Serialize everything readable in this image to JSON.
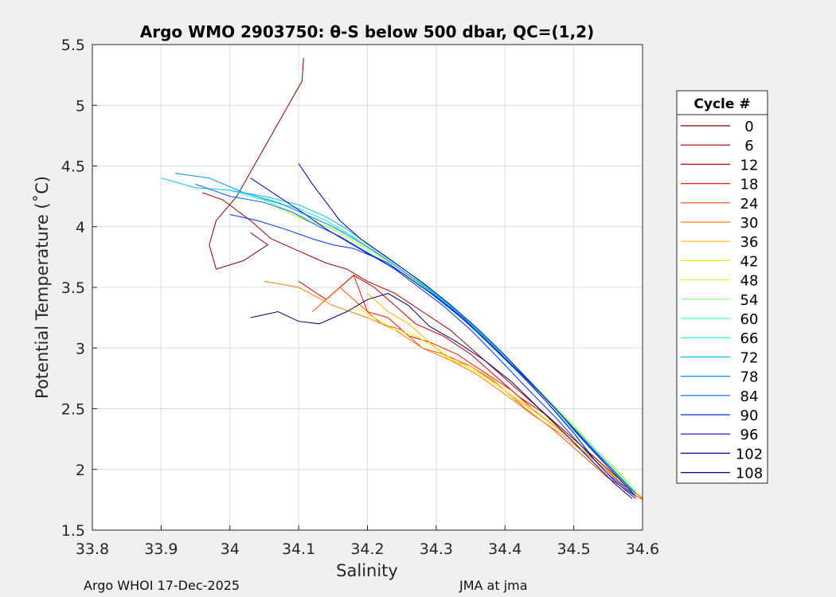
{
  "chart_data": {
    "type": "line",
    "title": "Argo WMO 2903750: θ-S below 500 dbar,  QC=(1,2)",
    "xlabel": "Salinity",
    "ylabel": "Potential Temperature (˚C)",
    "xlim": [
      33.8,
      34.6
    ],
    "ylim": [
      1.5,
      5.5
    ],
    "x_ticks": [
      "33.8",
      "33.9",
      "34",
      "34.1",
      "34.2",
      "34.3",
      "34.4",
      "34.5",
      "34.6"
    ],
    "y_ticks": [
      "1.5",
      "2",
      "2.5",
      "3",
      "3.5",
      "4",
      "4.5",
      "5",
      "5.5"
    ],
    "grid": true,
    "colormap": "jet",
    "legend": {
      "title": "Cycle #",
      "placement": "outside-right",
      "entries": [
        {
          "label": "0",
          "color": "#800000"
        },
        {
          "label": "6",
          "color": "#a30000"
        },
        {
          "label": "12",
          "color": "#c80000"
        },
        {
          "label": "18",
          "color": "#ec1a00"
        },
        {
          "label": "24",
          "color": "#ff4a00"
        },
        {
          "label": "30",
          "color": "#ff8000"
        },
        {
          "label": "36",
          "color": "#ffb000"
        },
        {
          "label": "42",
          "color": "#f2ea00"
        },
        {
          "label": "48",
          "color": "#b8ff3a"
        },
        {
          "label": "54",
          "color": "#7cff70"
        },
        {
          "label": "60",
          "color": "#3dffb0"
        },
        {
          "label": "66",
          "color": "#15e8d8"
        },
        {
          "label": "72",
          "color": "#00c0ff"
        },
        {
          "label": "78",
          "color": "#0090ff"
        },
        {
          "label": "84",
          "color": "#0060ff"
        },
        {
          "label": "90",
          "color": "#0030f0"
        },
        {
          "label": "96",
          "color": "#0008c8"
        },
        {
          "label": "102",
          "color": "#00009a"
        },
        {
          "label": "108",
          "color": "#00007a"
        }
      ]
    },
    "series": [
      {
        "name": "0",
        "x": [
          34.107,
          34.105,
          34.04,
          34.01,
          33.98,
          33.97,
          33.98,
          34.02,
          34.055,
          34.03
        ],
        "y": [
          5.39,
          5.2,
          4.55,
          4.25,
          4.05,
          3.85,
          3.65,
          3.72,
          3.85,
          3.95
        ]
      },
      {
        "name": "6",
        "x": [
          33.96,
          33.99,
          34.03,
          34.06,
          34.1,
          34.14,
          34.17,
          34.2,
          34.24,
          34.28,
          34.32,
          34.36,
          34.4,
          34.44,
          34.48,
          34.52,
          34.56,
          34.6
        ],
        "y": [
          4.28,
          4.22,
          4.05,
          3.9,
          3.8,
          3.7,
          3.65,
          3.55,
          3.45,
          3.3,
          3.15,
          2.95,
          2.75,
          2.55,
          2.35,
          2.15,
          1.95,
          1.76
        ]
      },
      {
        "name": "12",
        "x": [
          34.1,
          34.14,
          34.18,
          34.21,
          34.24,
          34.27,
          34.31,
          34.35,
          34.38,
          34.42,
          34.46,
          34.5,
          34.54,
          34.58,
          34.602
        ],
        "y": [
          3.55,
          3.4,
          3.6,
          3.5,
          3.35,
          3.2,
          3.1,
          2.95,
          2.8,
          2.6,
          2.45,
          2.25,
          2.05,
          1.85,
          1.75
        ]
      },
      {
        "name": "18",
        "x": [
          34.15,
          34.18,
          34.2,
          34.23,
          34.26,
          34.29,
          34.33,
          34.37,
          34.41,
          34.45,
          34.49,
          34.53,
          34.57,
          34.6
        ],
        "y": [
          3.45,
          3.6,
          3.3,
          3.25,
          3.1,
          3.05,
          2.95,
          2.8,
          2.65,
          2.45,
          2.28,
          2.08,
          1.88,
          1.77
        ]
      },
      {
        "name": "24",
        "x": [
          34.12,
          34.16,
          34.19,
          34.22,
          34.25,
          34.28,
          34.31,
          34.35,
          34.39,
          34.43,
          34.47,
          34.51,
          34.55,
          34.59,
          34.605
        ],
        "y": [
          3.3,
          3.5,
          3.35,
          3.2,
          3.15,
          3.0,
          2.95,
          2.85,
          2.7,
          2.5,
          2.33,
          2.13,
          1.93,
          1.78,
          1.74
        ]
      },
      {
        "name": "30",
        "x": [
          34.05,
          34.1,
          34.15,
          34.2,
          34.24,
          34.28,
          34.32,
          34.36,
          34.4,
          34.44,
          34.48,
          34.52,
          34.56,
          34.6
        ],
        "y": [
          3.55,
          3.5,
          3.35,
          3.25,
          3.15,
          3.0,
          2.9,
          2.78,
          2.62,
          2.45,
          2.3,
          2.12,
          1.94,
          1.76
        ]
      },
      {
        "name": "36",
        "x": [
          34.2,
          34.23,
          34.26,
          34.29,
          34.32,
          34.35,
          34.38,
          34.41,
          34.45,
          34.49,
          34.53,
          34.57,
          34.6
        ],
        "y": [
          3.45,
          3.3,
          3.2,
          3.05,
          2.9,
          2.85,
          2.75,
          2.6,
          2.45,
          2.28,
          2.08,
          1.9,
          1.77
        ]
      },
      {
        "name": "42",
        "x": [
          34.18,
          34.21,
          34.24,
          34.27,
          34.3,
          34.33,
          34.36,
          34.4,
          34.44,
          34.48,
          34.52,
          34.56,
          34.6
        ],
        "y": [
          3.35,
          3.25,
          3.15,
          3.1,
          3.0,
          2.88,
          2.8,
          2.65,
          2.5,
          2.33,
          2.13,
          1.94,
          1.77
        ]
      },
      {
        "name": "48",
        "x": [
          34.07,
          34.11,
          34.15,
          34.18,
          34.21,
          34.24,
          34.27,
          34.3,
          34.34,
          34.38,
          34.42,
          34.46,
          34.5,
          34.54,
          34.58
        ],
        "y": [
          4.15,
          4.05,
          3.98,
          3.88,
          3.78,
          3.68,
          3.55,
          3.42,
          3.25,
          3.05,
          2.82,
          2.58,
          2.35,
          2.12,
          1.88
        ]
      },
      {
        "name": "54",
        "x": [
          34.05,
          34.09,
          34.13,
          34.17,
          34.2,
          34.23,
          34.26,
          34.29,
          34.33,
          34.37,
          34.41,
          34.45,
          34.49,
          34.53,
          34.57,
          34.59
        ],
        "y": [
          4.22,
          4.12,
          4.02,
          3.95,
          3.85,
          3.75,
          3.62,
          3.48,
          3.3,
          3.1,
          2.88,
          2.65,
          2.42,
          2.18,
          1.95,
          1.82
        ]
      },
      {
        "name": "60",
        "x": [
          34.03,
          34.07,
          34.11,
          34.15,
          34.18,
          34.21,
          34.24,
          34.28,
          34.32,
          34.36,
          34.4,
          34.44,
          34.48,
          34.52,
          34.56,
          34.59
        ],
        "y": [
          4.25,
          4.2,
          4.1,
          4.0,
          3.9,
          3.8,
          3.68,
          3.52,
          3.35,
          3.15,
          2.92,
          2.7,
          2.46,
          2.22,
          1.98,
          1.81
        ]
      },
      {
        "name": "66",
        "x": [
          34.0,
          34.05,
          34.1,
          34.14,
          34.17,
          34.2,
          34.23,
          34.27,
          34.31,
          34.35,
          34.39,
          34.43,
          34.47,
          34.51,
          34.55,
          34.59
        ],
        "y": [
          4.3,
          4.22,
          4.15,
          4.05,
          3.95,
          3.83,
          3.72,
          3.56,
          3.38,
          3.18,
          2.96,
          2.74,
          2.5,
          2.26,
          2.02,
          1.8
        ]
      },
      {
        "name": "72",
        "x": [
          33.9,
          33.95,
          34.0,
          34.05,
          34.1,
          34.14,
          34.17,
          34.2,
          34.23,
          34.27,
          34.31,
          34.35,
          34.39,
          34.43,
          34.47,
          34.51,
          34.55,
          34.59
        ],
        "y": [
          4.4,
          4.32,
          4.3,
          4.25,
          4.18,
          4.08,
          3.98,
          3.86,
          3.74,
          3.58,
          3.4,
          3.2,
          2.98,
          2.75,
          2.52,
          2.28,
          2.04,
          1.8
        ]
      },
      {
        "name": "78",
        "x": [
          33.92,
          33.97,
          34.02,
          34.07,
          34.11,
          34.15,
          34.18,
          34.21,
          34.24,
          34.28,
          34.32,
          34.36,
          34.4,
          34.44,
          34.48,
          34.52,
          34.56,
          34.59
        ],
        "y": [
          4.44,
          4.4,
          4.28,
          4.2,
          4.1,
          4.0,
          3.9,
          3.8,
          3.68,
          3.52,
          3.34,
          3.14,
          2.92,
          2.7,
          2.46,
          2.22,
          1.98,
          1.8
        ]
      },
      {
        "name": "84",
        "x": [
          33.95,
          34.0,
          34.05,
          34.09,
          34.13,
          34.16,
          34.19,
          34.22,
          34.25,
          34.29,
          34.33,
          34.37,
          34.41,
          34.45,
          34.49,
          34.53,
          34.57,
          34.59
        ],
        "y": [
          4.35,
          4.25,
          4.2,
          4.12,
          4.0,
          3.92,
          3.82,
          3.72,
          3.62,
          3.46,
          3.28,
          3.08,
          2.86,
          2.64,
          2.4,
          2.15,
          1.92,
          1.8
        ]
      },
      {
        "name": "90",
        "x": [
          34.0,
          34.04,
          34.08,
          34.12,
          34.15,
          34.18,
          34.21,
          34.24,
          34.27,
          34.31,
          34.35,
          34.39,
          34.43,
          34.47,
          34.51,
          34.55,
          34.59
        ],
        "y": [
          4.1,
          4.05,
          3.98,
          3.9,
          3.85,
          3.82,
          3.75,
          3.65,
          3.52,
          3.35,
          3.15,
          2.92,
          2.68,
          2.45,
          2.2,
          1.96,
          1.78
        ]
      },
      {
        "name": "96",
        "x": [
          34.03,
          34.07,
          34.11,
          34.14,
          34.17,
          34.2,
          34.23,
          34.26,
          34.3,
          34.34,
          34.38,
          34.42,
          34.46,
          34.5,
          34.53,
          34.56,
          34.59
        ],
        "y": [
          4.4,
          4.25,
          4.1,
          3.98,
          3.88,
          3.78,
          3.7,
          3.58,
          3.42,
          3.24,
          3.02,
          2.8,
          2.56,
          2.3,
          2.08,
          1.9,
          1.76
        ]
      },
      {
        "name": "102",
        "x": [
          34.1,
          34.12,
          34.14,
          34.16,
          34.19,
          34.22,
          34.25,
          34.28,
          34.32,
          34.36,
          34.4,
          34.44,
          34.48,
          34.52,
          34.56,
          34.59
        ],
        "y": [
          4.52,
          4.35,
          4.2,
          4.05,
          3.9,
          3.78,
          3.66,
          3.54,
          3.36,
          3.16,
          2.94,
          2.7,
          2.46,
          2.2,
          1.96,
          1.78
        ]
      },
      {
        "name": "108",
        "x": [
          34.03,
          34.07,
          34.1,
          34.13,
          34.17,
          34.2,
          34.23,
          34.26,
          34.29,
          34.33,
          34.37,
          34.41,
          34.45,
          34.49,
          34.53,
          34.56,
          34.585
        ],
        "y": [
          3.25,
          3.3,
          3.22,
          3.2,
          3.3,
          3.4,
          3.45,
          3.35,
          3.18,
          3.05,
          2.9,
          2.72,
          2.5,
          2.28,
          2.05,
          1.88,
          1.76
        ]
      }
    ]
  },
  "footer": {
    "left": "Argo WHOI 17-Dec-2025",
    "right": "JMA at jma"
  }
}
